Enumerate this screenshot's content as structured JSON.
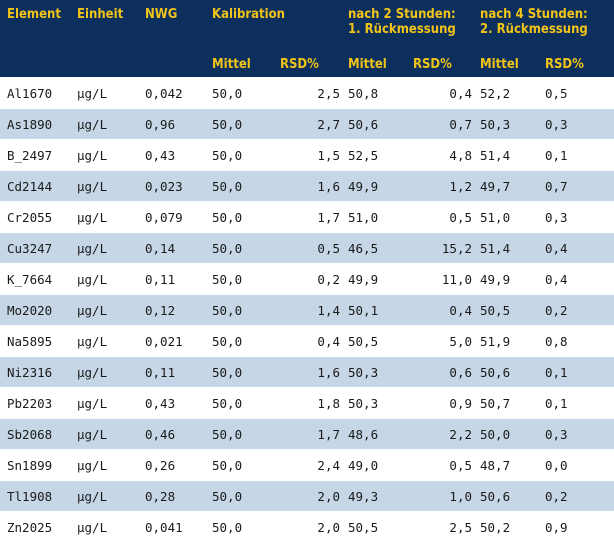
{
  "headers": {
    "element": "Element",
    "einheit": "Einheit",
    "nwg": "NWG",
    "kalibration": "Kalibration",
    "nach2_line1": "nach 2 Stunden:",
    "nach2_line2": "1. Rückmessung",
    "nach4_line1": "nach 4 Stunden:",
    "nach4_line2": "2. Rückmessung",
    "mittel": "Mittel",
    "rsd": "RSD%"
  },
  "rows": [
    {
      "element": "Al1670",
      "einheit": "µg/L",
      "nwg": "0,042",
      "k_mittel": "50,0",
      "k_rsd": "2,5",
      "r1_mittel": "50,8",
      "r1_rsd": "0,4",
      "r2_mittel": "52,2",
      "r2_rsd": "0,5"
    },
    {
      "element": "As1890",
      "einheit": "µg/L",
      "nwg": "0,96",
      "k_mittel": "50,0",
      "k_rsd": "2,7",
      "r1_mittel": "50,6",
      "r1_rsd": "0,7",
      "r2_mittel": "50,3",
      "r2_rsd": "0,3"
    },
    {
      "element": "B_2497",
      "einheit": "µg/L",
      "nwg": "0,43",
      "k_mittel": "50,0",
      "k_rsd": "1,5",
      "r1_mittel": "52,5",
      "r1_rsd": "4,8",
      "r2_mittel": "51,4",
      "r2_rsd": "0,1"
    },
    {
      "element": "Cd2144",
      "einheit": "µg/L",
      "nwg": "0,023",
      "k_mittel": "50,0",
      "k_rsd": "1,6",
      "r1_mittel": "49,9",
      "r1_rsd": "1,2",
      "r2_mittel": "49,7",
      "r2_rsd": "0,7"
    },
    {
      "element": "Cr2055",
      "einheit": "µg/L",
      "nwg": "0,079",
      "k_mittel": "50,0",
      "k_rsd": "1,7",
      "r1_mittel": "51,0",
      "r1_rsd": "0,5",
      "r2_mittel": "51,0",
      "r2_rsd": "0,3"
    },
    {
      "element": "Cu3247",
      "einheit": "µg/L",
      "nwg": "0,14",
      "k_mittel": "50,0",
      "k_rsd": "0,5",
      "r1_mittel": "46,5",
      "r1_rsd": "15,2",
      "r2_mittel": "51,4",
      "r2_rsd": "0,4"
    },
    {
      "element": "K_7664",
      "einheit": "µg/L",
      "nwg": "0,11",
      "k_mittel": "50,0",
      "k_rsd": "0,2",
      "r1_mittel": "49,9",
      "r1_rsd": "11,0",
      "r2_mittel": "49,9",
      "r2_rsd": "0,4"
    },
    {
      "element": "Mo2020",
      "einheit": "µg/L",
      "nwg": "0,12",
      "k_mittel": "50,0",
      "k_rsd": "1,4",
      "r1_mittel": "50,1",
      "r1_rsd": "0,4",
      "r2_mittel": "50,5",
      "r2_rsd": "0,2"
    },
    {
      "element": "Na5895",
      "einheit": "µg/L",
      "nwg": "0,021",
      "k_mittel": "50,0",
      "k_rsd": "0,4",
      "r1_mittel": "50,5",
      "r1_rsd": "5,0",
      "r2_mittel": "51,9",
      "r2_rsd": "0,8"
    },
    {
      "element": "Ni2316",
      "einheit": "µg/L",
      "nwg": "0,11",
      "k_mittel": "50,0",
      "k_rsd": "1,6",
      "r1_mittel": "50,3",
      "r1_rsd": "0,6",
      "r2_mittel": "50,6",
      "r2_rsd": "0,1"
    },
    {
      "element": "Pb2203",
      "einheit": "µg/L",
      "nwg": "0,43",
      "k_mittel": "50,0",
      "k_rsd": "1,8",
      "r1_mittel": "50,3",
      "r1_rsd": "0,9",
      "r2_mittel": "50,7",
      "r2_rsd": "0,1"
    },
    {
      "element": "Sb2068",
      "einheit": "µg/L",
      "nwg": "0,46",
      "k_mittel": "50,0",
      "k_rsd": "1,7",
      "r1_mittel": "48,6",
      "r1_rsd": "2,2",
      "r2_mittel": "50,0",
      "r2_rsd": "0,3"
    },
    {
      "element": "Sn1899",
      "einheit": "µg/L",
      "nwg": "0,26",
      "k_mittel": "50,0",
      "k_rsd": "2,4",
      "r1_mittel": "49,0",
      "r1_rsd": "0,5",
      "r2_mittel": "48,7",
      "r2_rsd": "0,0"
    },
    {
      "element": "Tl1908",
      "einheit": "µg/L",
      "nwg": "0,28",
      "k_mittel": "50,0",
      "k_rsd": "2,0",
      "r1_mittel": "49,3",
      "r1_rsd": "1,0",
      "r2_mittel": "50,6",
      "r2_rsd": "0,2"
    },
    {
      "element": "Zn2025",
      "einheit": "µg/L",
      "nwg": "0,041",
      "k_mittel": "50,0",
      "k_rsd": "2,0",
      "r1_mittel": "50,5",
      "r1_rsd": "2,5",
      "r2_mittel": "50,2",
      "r2_rsd": "0,9"
    }
  ]
}
